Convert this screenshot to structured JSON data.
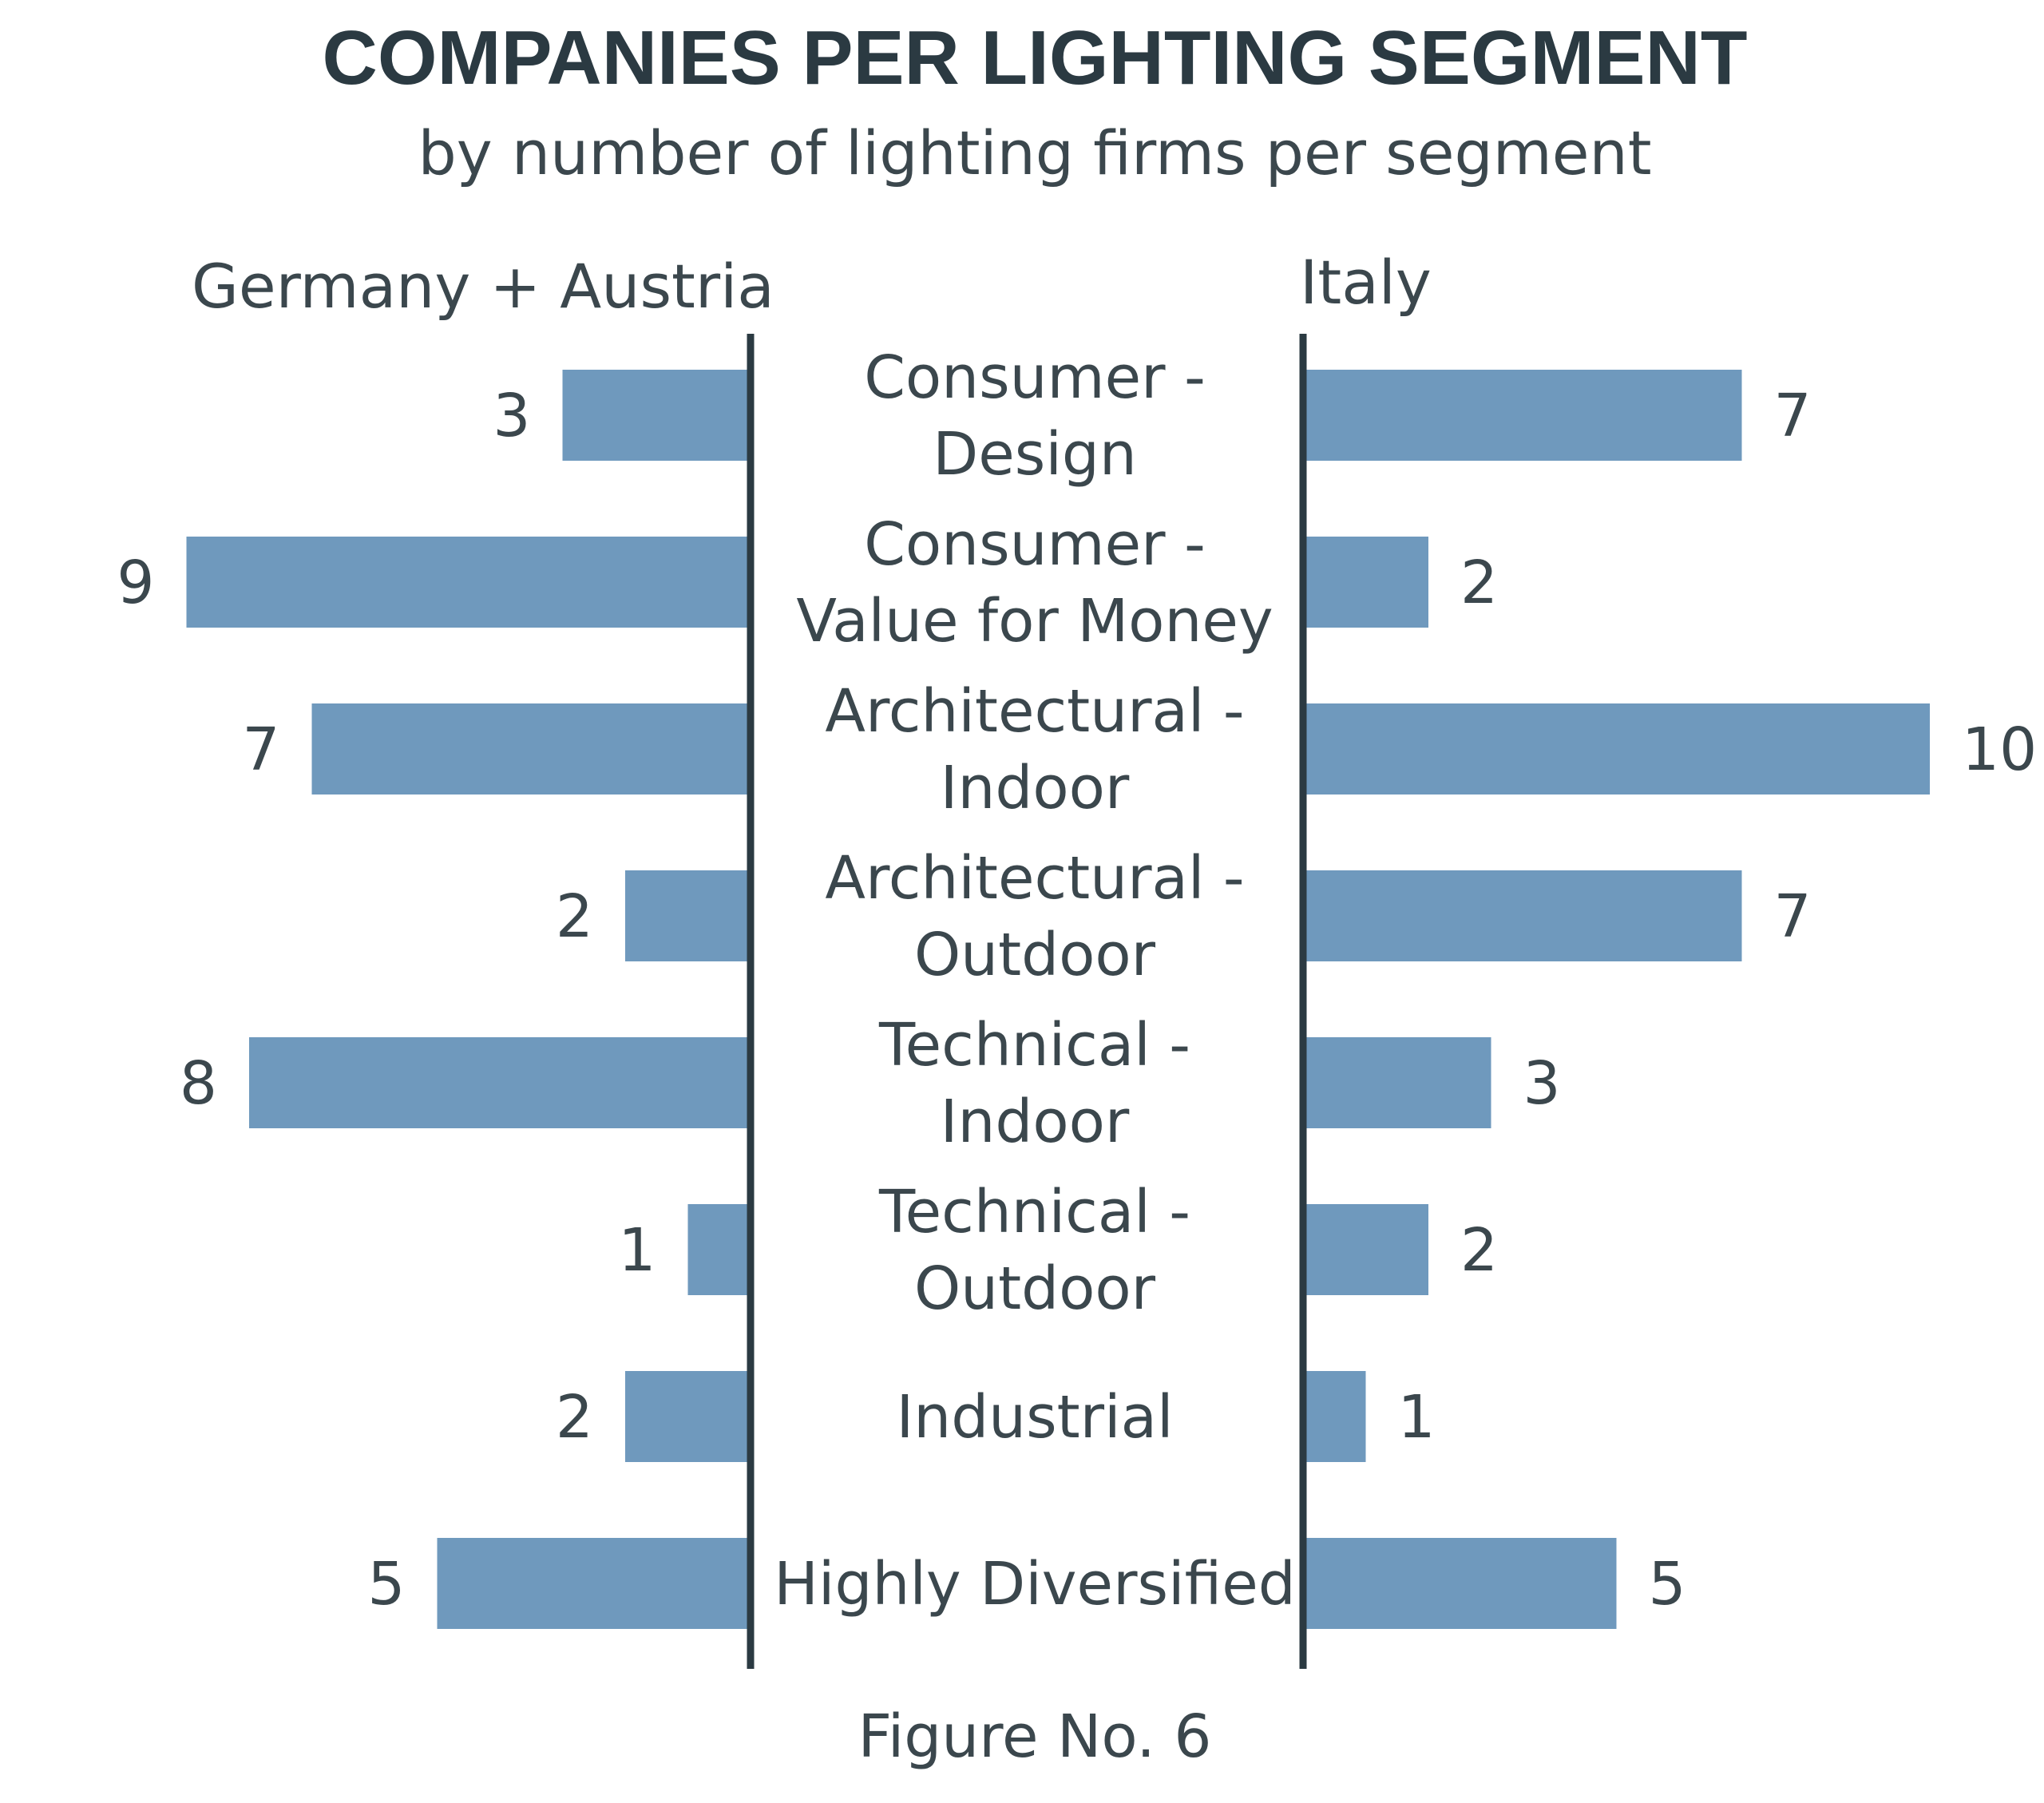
{
  "chart_data": {
    "type": "bar",
    "orientation": "horizontal-butterfly",
    "title": "COMPANIES PER LIGHTING SEGMENT",
    "subtitle": "by number of lighting firms per segment",
    "caption": "Figure No. 6",
    "bar_color": "#6f99bd",
    "axis_color": "#2b3a42",
    "categories": [
      [
        "Consumer -",
        "Design"
      ],
      [
        "Consumer -",
        "Value for Money"
      ],
      [
        "Architectural -",
        "Indoor"
      ],
      [
        "Architectural -",
        "Outdoor"
      ],
      [
        "Technical -",
        "Indoor"
      ],
      [
        "Technical -",
        "Outdoor"
      ],
      [
        "Industrial"
      ],
      [
        "Highly Diversified"
      ]
    ],
    "series": [
      {
        "name": "Germany + Austria",
        "side": "left",
        "values": [
          3,
          9,
          7,
          2,
          8,
          1,
          2,
          5
        ]
      },
      {
        "name": "Italy",
        "side": "right",
        "values": [
          7,
          2,
          10,
          7,
          3,
          2,
          1,
          5
        ]
      }
    ]
  }
}
